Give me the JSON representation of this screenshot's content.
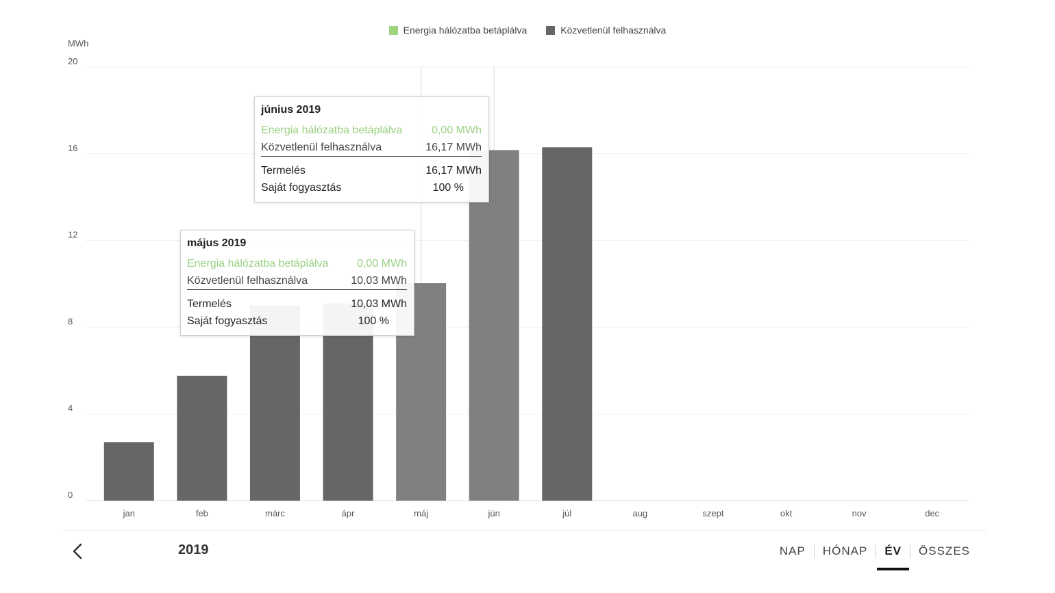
{
  "chart_data": {
    "type": "bar",
    "categories": [
      "jan",
      "feb",
      "márc",
      "ápr",
      "máj",
      "jún",
      "júl",
      "aug",
      "szept",
      "okt",
      "nov",
      "dec"
    ],
    "series": [
      {
        "name": "Energia hálózatba betáplálva",
        "color": "#9fd37f",
        "values": [
          0,
          0,
          0,
          0,
          0.0,
          0.0,
          0,
          null,
          null,
          null,
          null,
          null
        ]
      },
      {
        "name": "Közvetlenül felhasználva",
        "color": "#666666",
        "values": [
          2.7,
          5.75,
          9.0,
          9.1,
          10.03,
          16.17,
          16.3,
          null,
          null,
          null,
          null,
          null
        ]
      }
    ],
    "ylabel": "MWh",
    "ylim": [
      0,
      20
    ],
    "yticks": [
      0,
      4,
      8,
      12,
      16,
      20
    ],
    "grid": true,
    "legend": "top-center",
    "highlighted_categories": [
      "máj",
      "jún"
    ],
    "highlight_color": "#808080"
  },
  "tooltips": [
    {
      "title": "június 2019",
      "feed_label": "Energia hálózatba betáplálva",
      "feed_value": "0,00 MWh",
      "direct_label": "Közvetlenül felhasználva",
      "direct_value": "16,17 MWh",
      "production_label": "Termelés",
      "production_value": "16,17 MWh",
      "self_label": "Saját fogyasztás",
      "self_value": "100 %"
    },
    {
      "title": "május 2019",
      "feed_label": "Energia hálózatba betáplálva",
      "feed_value": "0,00 MWh",
      "direct_label": "Közvetlenül felhasználva",
      "direct_value": "10,03 MWh",
      "production_label": "Termelés",
      "production_value": "10,03 MWh",
      "self_label": "Saját fogyasztás",
      "self_value": "100 %"
    }
  ],
  "footer": {
    "back_icon": "chevron-left-icon",
    "year": "2019",
    "tabs": [
      {
        "label": "NAP",
        "active": false
      },
      {
        "label": "HÓNAP",
        "active": false
      },
      {
        "label": "ÉV",
        "active": true
      },
      {
        "label": "ÖSSZES",
        "active": false
      }
    ]
  }
}
